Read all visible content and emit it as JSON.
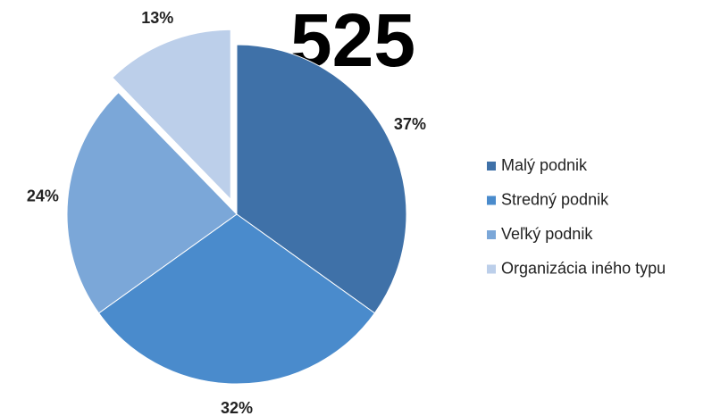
{
  "chart_data": {
    "type": "pie",
    "title": "525",
    "categories": [
      "Malý podnik",
      "Stredný podnik",
      "Veľký podnik",
      "Organizácia iného typu"
    ],
    "values": [
      37,
      32,
      24,
      13
    ],
    "value_labels": [
      "37%",
      "32%",
      "24%",
      "13%"
    ],
    "colors": [
      "#3f71a8",
      "#4a8bcc",
      "#7ba7d8",
      "#bccfea"
    ],
    "exploded": [
      3
    ],
    "legend": "right"
  }
}
